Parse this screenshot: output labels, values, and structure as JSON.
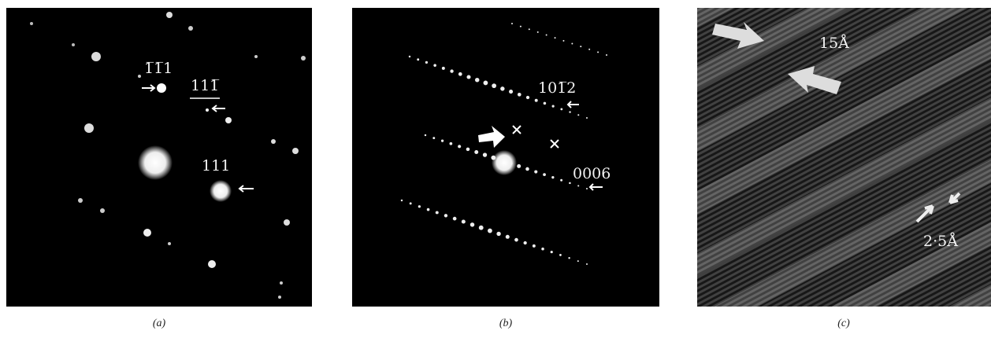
{
  "panels": [
    {
      "caption": "(a)",
      "labels": [
        "1̅1̅1",
        "111̅",
        "111"
      ]
    },
    {
      "caption": "(b)",
      "labels": [
        "101̅2",
        "0006"
      ]
    },
    {
      "caption": "(c)",
      "labels": [
        "15Å",
        "2·5Å"
      ]
    }
  ]
}
